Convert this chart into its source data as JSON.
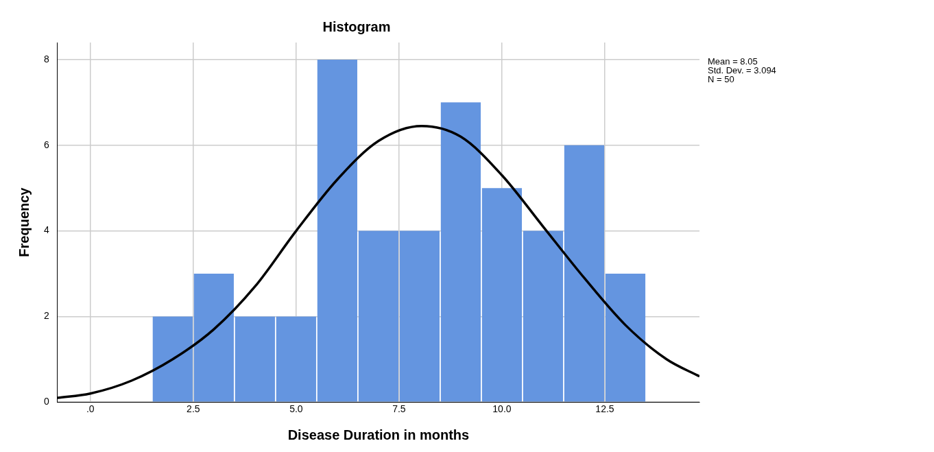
{
  "chart_data": {
    "type": "histogram",
    "title": "Histogram",
    "xlabel": "Disease Duration in months",
    "ylabel": "Frequency",
    "bins": [
      1.5,
      2.5,
      3.5,
      4.5,
      5.5,
      6.5,
      7.5,
      8.5,
      9.5,
      10.5,
      11.5,
      12.5,
      13.5
    ],
    "values": [
      2,
      3,
      2,
      2,
      8,
      4,
      4,
      7,
      5,
      4,
      6,
      3
    ],
    "color": "#6495e0",
    "series": [
      {
        "type": "line",
        "color": "#000000",
        "x": [
          -0.8,
          0,
          1,
          2,
          3,
          4,
          5,
          6,
          7,
          8.05,
          9,
          10,
          11,
          12,
          13,
          14,
          14.8
        ],
        "values": [
          0.1,
          0.2,
          0.5,
          1.0,
          1.7,
          2.7,
          4.0,
          5.2,
          6.1,
          6.45,
          6.2,
          5.3,
          4.1,
          2.9,
          1.8,
          1.0,
          0.6
        ]
      }
    ],
    "xlim": [
      -0.8,
      14.8
    ],
    "xticks": [
      {
        "value": 0,
        "label": ".0"
      },
      2.5,
      {
        "value": 5,
        "label": "5.0"
      },
      7.5,
      {
        "value": 10,
        "label": "10.0"
      },
      12.5
    ],
    "ylim": [
      0,
      8.4
    ],
    "yticks": [
      0,
      2,
      4,
      6,
      8
    ],
    "grid": true,
    "marker": "none",
    "annotations": [
      "Mean = 8.05",
      "Std. Dev. = 3.094",
      "N = 50"
    ]
  }
}
